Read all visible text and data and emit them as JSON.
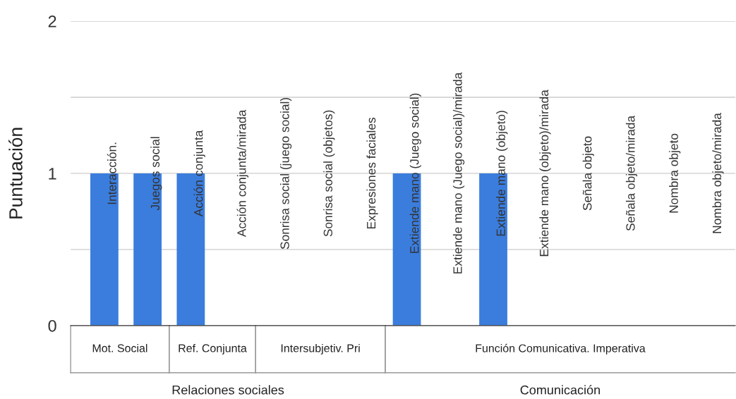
{
  "chart_data": {
    "type": "bar",
    "ylabel": "Puntuación",
    "categories": [
      "Interacción.",
      "Juegos social",
      "Acción conjunta",
      "Acción conjunta/mirada",
      "Sonrisa social (juego social)",
      "Sonrisa social (objetos)",
      "Expresiones faciales",
      "Extiende mano (Juego social)",
      "Extiende mano (Juego social)/mirada",
      "Extiende mano (objeto)",
      "Extiende mano (objeto)/mirada",
      "Señala objeto",
      "Señala objeto/mirada",
      "Nombra objeto",
      "Nombra objeto/mirada"
    ],
    "values": [
      1,
      1,
      1,
      0,
      0,
      0,
      0,
      1,
      0,
      1,
      0,
      0,
      0,
      0,
      0
    ],
    "color": "#3b7ddd",
    "ylim": [
      0,
      2
    ],
    "yticks": [
      0,
      {
        "value": 0.5,
        "label": null
      },
      1,
      {
        "value": 1.5,
        "label": null
      },
      2
    ],
    "grid": "y",
    "annotations": [
      "Mot. Social",
      "Ref. Conjunta",
      "Intersubjetiv. Pri",
      "Función Comunicativa. Imperativa",
      "Relaciones sociales",
      "Comunicación"
    ]
  }
}
